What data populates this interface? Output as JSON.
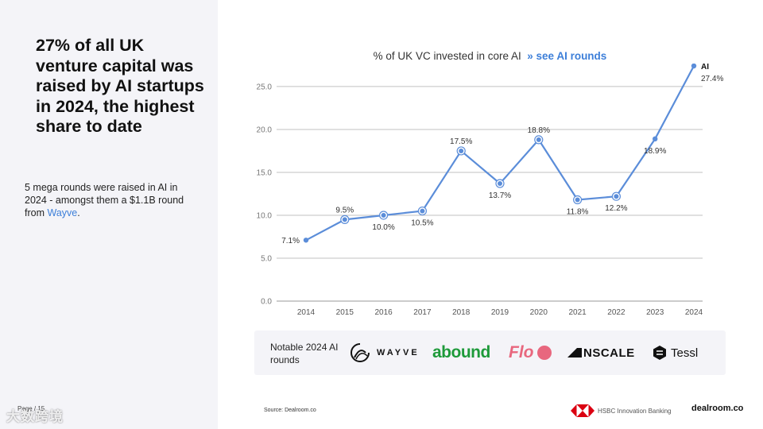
{
  "headline": "27% of all UK venture capital was raised by AI startups in 2024, the highest share to date",
  "body": {
    "text": "5 mega rounds were raised in AI in 2024 - amongst them a $1.1B round from ",
    "link": "Wayve",
    "suffix": "."
  },
  "page_label": "Page / 15",
  "watermark": "大数跨境",
  "chart_title": "% of UK VC invested in core AI",
  "chart_link": "» see AI rounds",
  "chart_data": {
    "type": "line",
    "title": "% of UK VC invested in core AI",
    "x": [
      "2014",
      "2015",
      "2016",
      "2017",
      "2018",
      "2019",
      "2020",
      "2021",
      "2022",
      "2023",
      "2024"
    ],
    "series": [
      {
        "name": "AI",
        "values": [
          7.1,
          9.5,
          10.0,
          10.5,
          17.5,
          13.7,
          18.8,
          11.8,
          12.2,
          18.9,
          27.4
        ],
        "labels": [
          "7.1%",
          "9.5%",
          "10.0%",
          "10.5%",
          "17.5%",
          "13.7%",
          "18.8%",
          "11.8%",
          "12.2%",
          "18.9%",
          "27.4%"
        ],
        "label_pos": [
          "left",
          "above",
          "below",
          "below",
          "above",
          "below",
          "above",
          "below",
          "below",
          "below",
          "right"
        ],
        "ringed": [
          false,
          true,
          true,
          true,
          true,
          true,
          true,
          true,
          true,
          false,
          false
        ]
      }
    ],
    "ylim": [
      0,
      27.4
    ],
    "yticks": [
      "0.0",
      "5.0",
      "10.0",
      "15.0",
      "20.0",
      "25.0"
    ],
    "ytick_values": [
      0,
      5,
      10,
      15,
      20,
      25
    ],
    "grid": true,
    "line_color": "#5b8dd9"
  },
  "logos": {
    "label": "Notable 2024 AI rounds",
    "items": [
      "WAYVE",
      "abound",
      "Flo",
      "NSCALE",
      "Tessl"
    ]
  },
  "source": "Source:    Dealroom.co",
  "hsbc": "HSBC Innovation Banking",
  "dealroom": "dealroom.co"
}
